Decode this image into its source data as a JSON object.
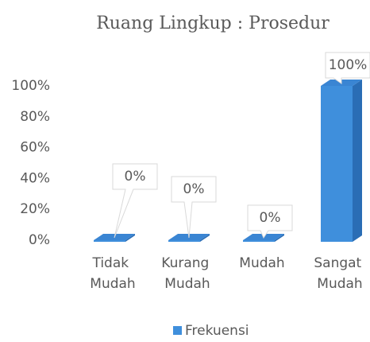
{
  "chart_data": {
    "type": "bar",
    "title": "Ruang Lingkup : Prosedur",
    "categories": [
      "Tidak Mudah",
      "Kurang Mudah",
      "Mudah",
      "Sangat Mudah"
    ],
    "series": [
      {
        "name": "Frekuensi",
        "color": "#3f8fdc",
        "values": [
          0,
          0,
          0,
          100
        ],
        "value_labels": [
          "0%",
          "0%",
          "0%",
          "100%"
        ]
      }
    ],
    "ylim": [
      0,
      100
    ],
    "yticks": [
      {
        "value": 0,
        "label": "0%"
      },
      {
        "value": 20,
        "label": "20%"
      },
      {
        "value": 40,
        "label": "40%"
      },
      {
        "value": 60,
        "label": "60%"
      },
      {
        "value": 80,
        "label": "80%"
      },
      {
        "value": 100,
        "label": "100%"
      }
    ],
    "grid": false,
    "legend": "bottom"
  }
}
